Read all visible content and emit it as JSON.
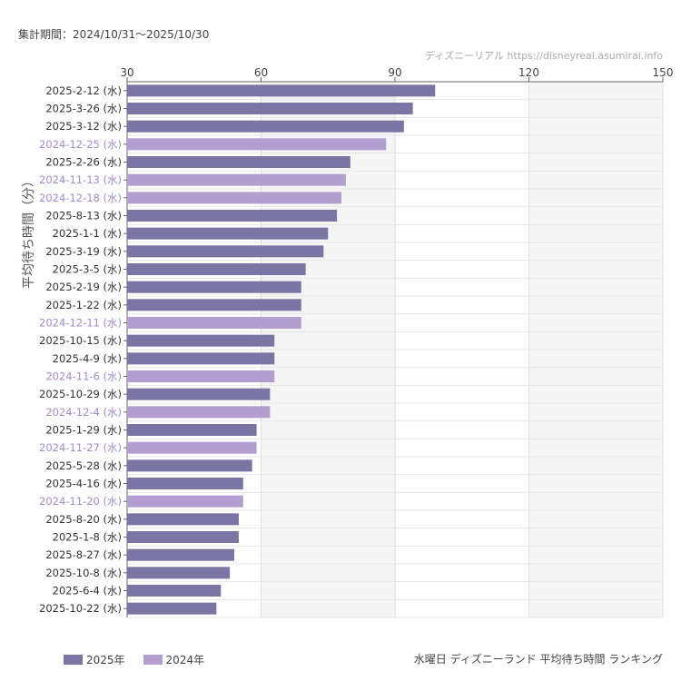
{
  "period": "集計期間：2024/10/31〜2025/10/30",
  "credit": "ディズニーリアル https://disneyreal.asumirai.info",
  "footer_title": "水曜日 ディズニーランド 平均待ち時間 ランキング",
  "colors": {
    "2025年": "#7b75a3",
    "2024年": "#b39fcf"
  },
  "chart_data": {
    "type": "bar",
    "orientation": "horizontal",
    "ylabel": "平均待ち時間（分）",
    "xlim": [
      30,
      150
    ],
    "xticks": [
      30,
      60,
      90,
      120,
      150
    ],
    "grid": true,
    "legend_position": "bottom-left",
    "legend": [
      "2025年",
      "2024年"
    ],
    "categories": [
      "2025-2-12 (水)",
      "2025-3-26 (水)",
      "2025-3-12 (水)",
      "2024-12-25 (水)",
      "2025-2-26 (水)",
      "2024-11-13 (水)",
      "2024-12-18 (水)",
      "2025-8-13 (水)",
      "2025-1-1 (水)",
      "2025-3-19 (水)",
      "2025-3-5 (水)",
      "2025-2-19 (水)",
      "2025-1-22 (水)",
      "2024-12-11 (水)",
      "2025-10-15 (水)",
      "2025-4-9 (水)",
      "2024-11-6 (水)",
      "2025-10-29 (水)",
      "2024-12-4 (水)",
      "2025-1-29 (水)",
      "2024-11-27 (水)",
      "2025-5-28 (水)",
      "2025-4-16 (水)",
      "2024-11-20 (水)",
      "2025-8-20 (水)",
      "2025-1-8 (水)",
      "2025-8-27 (水)",
      "2025-10-8 (水)",
      "2025-6-4 (水)",
      "2025-10-22 (水)"
    ],
    "values": [
      99,
      94,
      92,
      88,
      80,
      79,
      78,
      77,
      75,
      74,
      70,
      69,
      69,
      69,
      63,
      63,
      63,
      62,
      62,
      59,
      59,
      58,
      56,
      56,
      55,
      55,
      54,
      53,
      51,
      50
    ],
    "series_of_each": [
      "2025年",
      "2025年",
      "2025年",
      "2024年",
      "2025年",
      "2024年",
      "2024年",
      "2025年",
      "2025年",
      "2025年",
      "2025年",
      "2025年",
      "2025年",
      "2024年",
      "2025年",
      "2025年",
      "2024年",
      "2025年",
      "2024年",
      "2025年",
      "2024年",
      "2025年",
      "2025年",
      "2024年",
      "2025年",
      "2025年",
      "2025年",
      "2025年",
      "2025年",
      "2025年"
    ]
  }
}
